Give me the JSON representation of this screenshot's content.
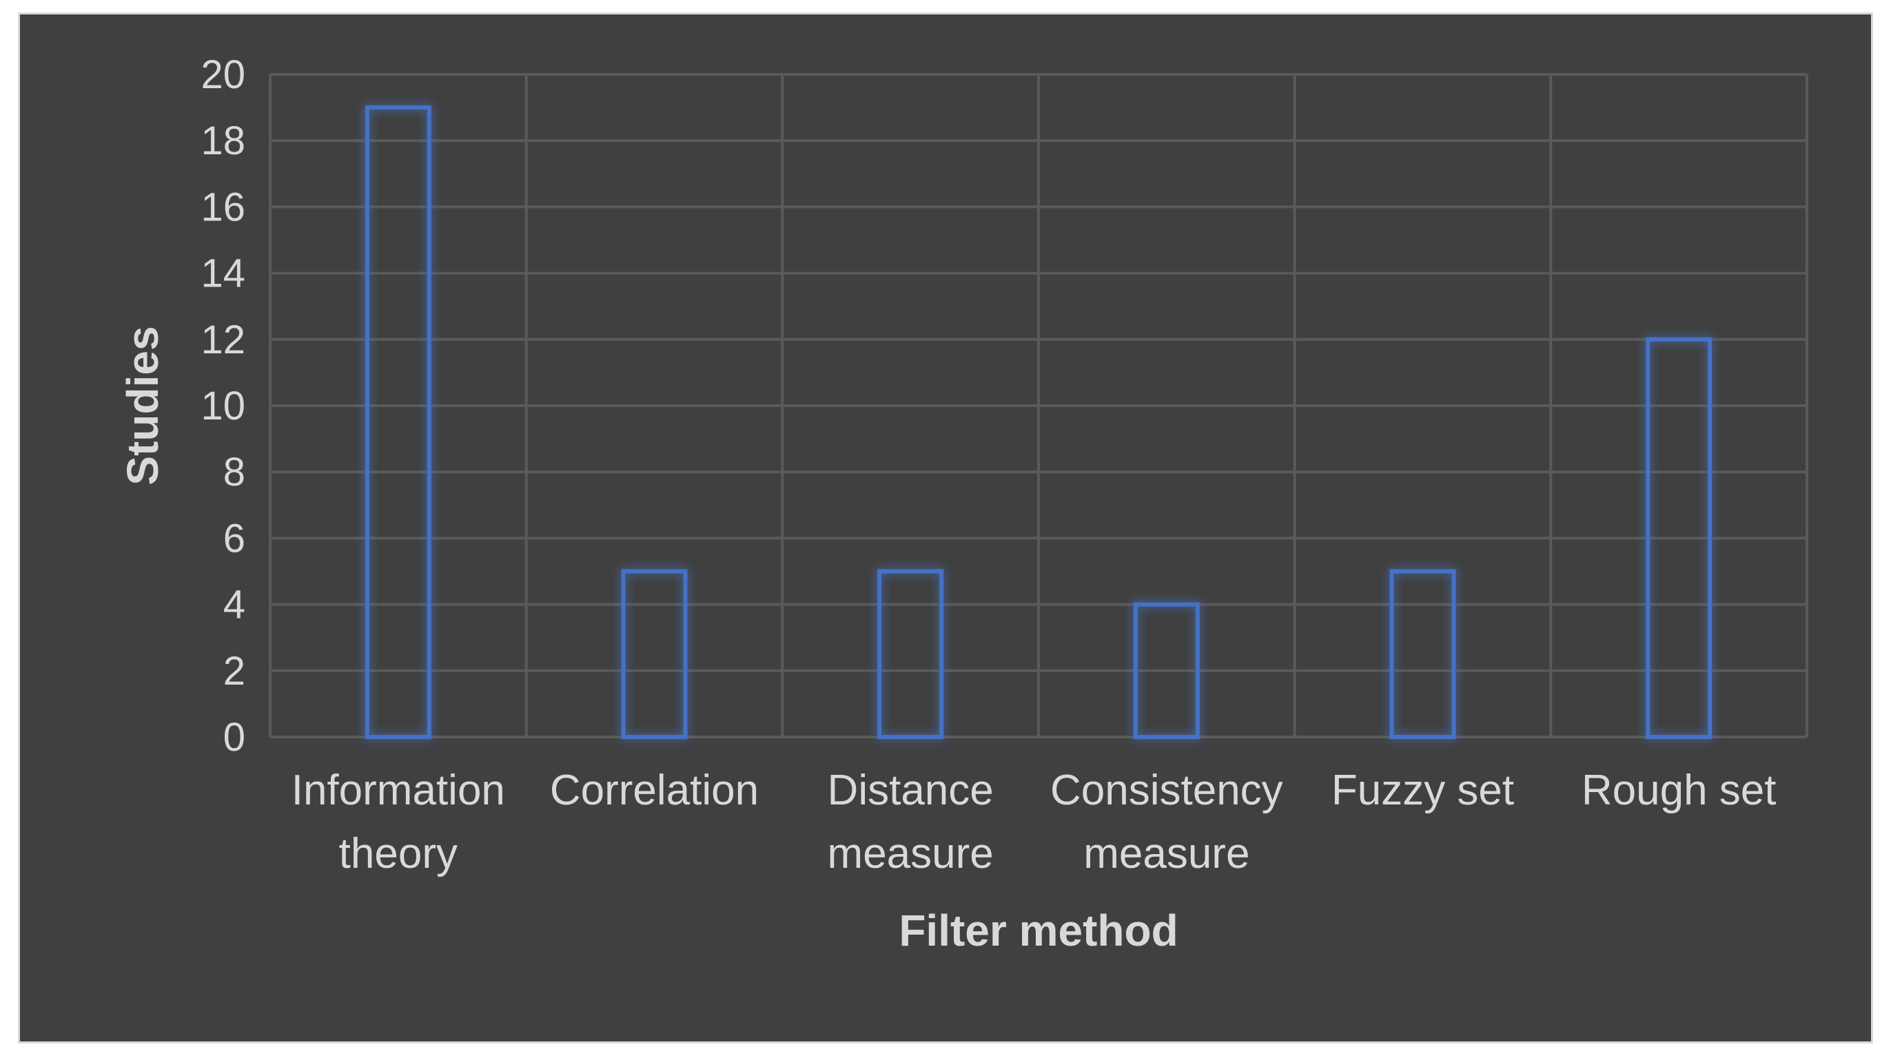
{
  "chart_data": {
    "type": "bar",
    "title": "",
    "xlabel": "Filter method",
    "ylabel": "Studies",
    "categories": [
      [
        "Information",
        "theory"
      ],
      [
        "Correlation"
      ],
      [
        "Distance",
        "measure"
      ],
      [
        "Consistency",
        "measure"
      ],
      [
        "Fuzzy set"
      ],
      [
        "Rough set"
      ]
    ],
    "values": [
      19,
      5,
      5,
      4,
      5,
      12
    ],
    "ylim": [
      0,
      20
    ],
    "yticks": [
      0,
      2,
      4,
      6,
      8,
      10,
      12,
      14,
      16,
      18,
      20
    ],
    "grid": true,
    "legend": "none",
    "colors": {
      "background": "#404040",
      "bar_outline": "#4472c4",
      "bar_glow": "#4472c4",
      "grid": "#5a5a5a",
      "text": "#d9d9d9",
      "frame_border": "#d9d9d9"
    }
  }
}
